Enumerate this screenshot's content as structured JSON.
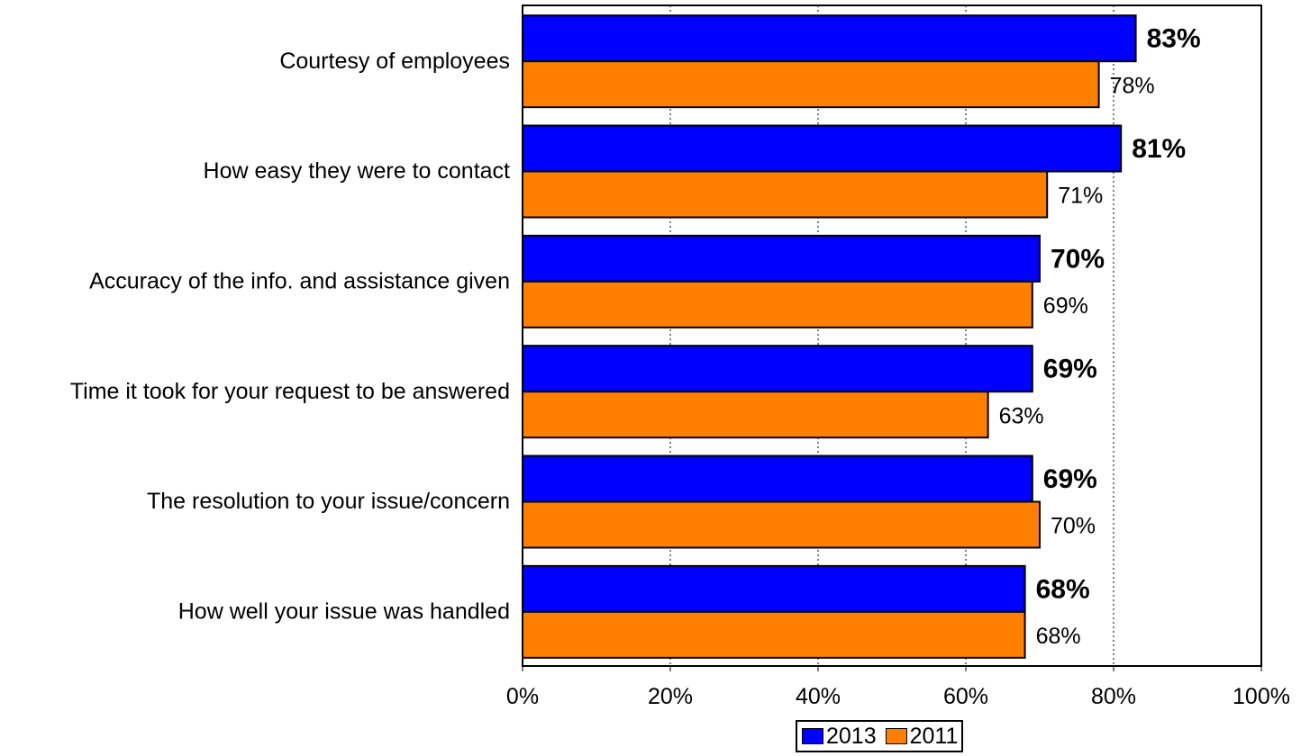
{
  "chart_data": {
    "type": "bar",
    "orientation": "horizontal",
    "categories": [
      "Courtesy of employees",
      "How easy they were to contact",
      "Accuracy of the info. and assistance given",
      "Time it took for your request to be answered",
      "The resolution to your issue/concern",
      "How well your issue was handled"
    ],
    "series": [
      {
        "name": "2013",
        "values": [
          83,
          81,
          70,
          69,
          69,
          68
        ],
        "labels": [
          "83%",
          "81%",
          "70%",
          "69%",
          "69%",
          "68%"
        ],
        "color": "#0000ff",
        "label_style": "bold"
      },
      {
        "name": "2011",
        "values": [
          78,
          71,
          69,
          63,
          70,
          68
        ],
        "labels": [
          "78%",
          "71%",
          "69%",
          "63%",
          "70%",
          "68%"
        ],
        "color": "#ff8000",
        "label_style": "normal"
      }
    ],
    "xlim": [
      0,
      100
    ],
    "xticks": [
      0,
      20,
      40,
      60,
      80,
      100
    ],
    "xtick_labels": [
      "0%",
      "20%",
      "40%",
      "60%",
      "80%",
      "100%"
    ],
    "grid": "vertical-dotted",
    "legend_position": "bottom-center",
    "title": "",
    "xlabel": "",
    "ylabel": ""
  }
}
